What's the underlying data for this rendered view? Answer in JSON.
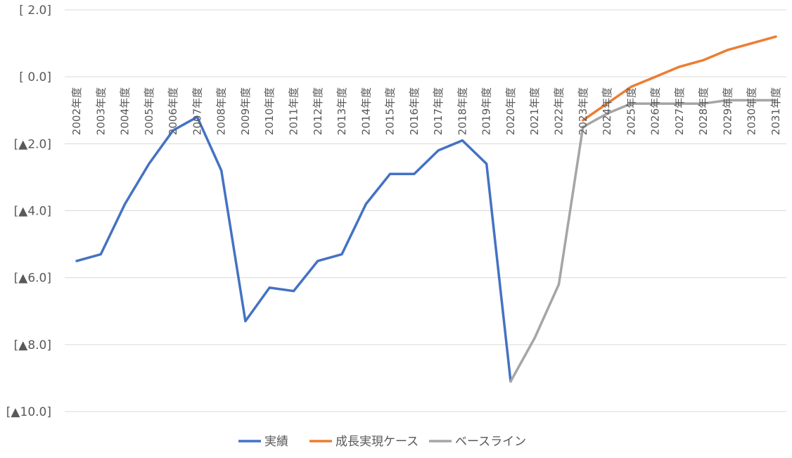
{
  "chart_data": {
    "type": "line",
    "title": "",
    "xlabel": "",
    "ylabel": "",
    "ylim": [
      -10,
      2
    ],
    "y_ticks": [
      2,
      0,
      -2,
      -4,
      -6,
      -8,
      -10
    ],
    "y_tick_labels": [
      "[ 2.0]",
      "[ 0.0]",
      "[▲2.0]",
      "[▲4.0]",
      "[▲6.0]",
      "[▲8.0]",
      "[▲10.0]"
    ],
    "categories": [
      "2002年度",
      "2003年度",
      "2004年度",
      "2005年度",
      "2006年度",
      "2007年度",
      "2008年度",
      "2009年度",
      "2010年度",
      "2011年度",
      "2012年度",
      "2013年度",
      "2014年度",
      "2015年度",
      "2016年度",
      "2017年度",
      "2018年度",
      "2019年度",
      "2020年度",
      "2021年度",
      "2022年度",
      "2023年度",
      "2024年度",
      "2025年度",
      "2026年度",
      "2027年度",
      "2028年度",
      "2029年度",
      "2030年度",
      "2031年度"
    ],
    "grid": true,
    "legend_position": "bottom",
    "series": [
      {
        "name": "実績",
        "color": "#4472c4",
        "values": [
          -5.5,
          -5.3,
          -3.8,
          -2.6,
          -1.6,
          -1.2,
          -2.8,
          -7.3,
          -6.3,
          -6.4,
          -5.5,
          -5.3,
          -3.8,
          -2.9,
          -2.9,
          -2.2,
          -1.9,
          -2.6,
          -9.1,
          null,
          null,
          null,
          null,
          null,
          null,
          null,
          null,
          null,
          null,
          null
        ]
      },
      {
        "name": "成長実現ケース",
        "color": "#ed7d31",
        "values": [
          null,
          null,
          null,
          null,
          null,
          null,
          null,
          null,
          null,
          null,
          null,
          null,
          null,
          null,
          null,
          null,
          null,
          null,
          null,
          null,
          null,
          -1.3,
          -0.8,
          -0.3,
          0.0,
          0.3,
          0.5,
          0.8,
          1.0,
          1.2
        ]
      },
      {
        "name": "ベースライン",
        "color": "#a5a5a5",
        "values": [
          null,
          null,
          null,
          null,
          null,
          null,
          null,
          null,
          null,
          null,
          null,
          null,
          null,
          null,
          null,
          null,
          null,
          null,
          -9.1,
          -7.8,
          -6.2,
          -1.5,
          -1.1,
          -0.8,
          -0.8,
          -0.8,
          -0.8,
          -0.7,
          -0.7,
          -0.7
        ]
      }
    ]
  }
}
